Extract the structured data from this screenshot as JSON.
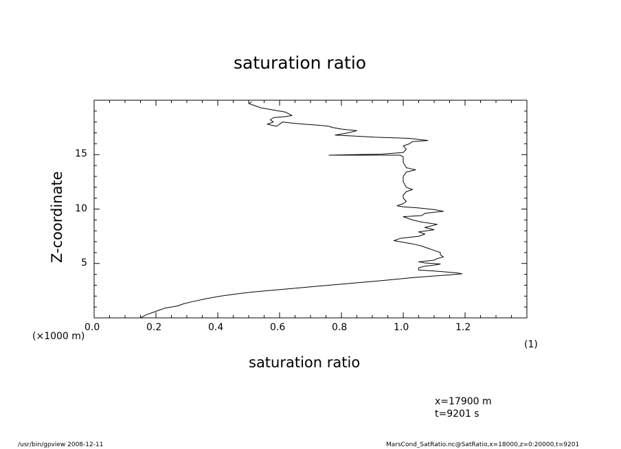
{
  "chart_data": {
    "type": "line",
    "title": "saturation ratio",
    "xlabel": "saturation ratio",
    "ylabel": "Z-coordinate",
    "xlim": [
      0.0,
      1.4
    ],
    "ylim": [
      0,
      20
    ],
    "x_ticks": [
      "0.0",
      "0.2",
      "0.4",
      "0.6",
      "0.8",
      "1.0",
      "1.2"
    ],
    "y_ticks": [
      "5",
      "10",
      "15"
    ],
    "x_units": "(1)",
    "y_units": "(×1000 m)",
    "grid": false,
    "series": [
      {
        "points": [
          [
            0.15,
            0.0
          ],
          [
            0.16,
            0.15
          ],
          [
            0.17,
            0.3
          ],
          [
            0.19,
            0.5
          ],
          [
            0.21,
            0.7
          ],
          [
            0.23,
            0.9
          ],
          [
            0.27,
            1.1
          ],
          [
            0.29,
            1.3
          ],
          [
            0.32,
            1.5
          ],
          [
            0.36,
            1.75
          ],
          [
            0.41,
            2.0
          ],
          [
            0.46,
            2.2
          ],
          [
            0.52,
            2.4
          ],
          [
            0.58,
            2.55
          ],
          [
            0.64,
            2.7
          ],
          [
            0.72,
            2.9
          ],
          [
            0.8,
            3.1
          ],
          [
            0.88,
            3.3
          ],
          [
            0.96,
            3.5
          ],
          [
            1.03,
            3.7
          ],
          [
            1.1,
            3.85
          ],
          [
            1.15,
            3.95
          ],
          [
            1.19,
            4.05
          ],
          [
            1.17,
            4.15
          ],
          [
            1.1,
            4.3
          ],
          [
            1.05,
            4.4
          ],
          [
            1.05,
            4.6
          ],
          [
            1.07,
            4.75
          ],
          [
            1.1,
            4.85
          ],
          [
            1.12,
            4.95
          ],
          [
            1.07,
            5.05
          ],
          [
            1.05,
            5.15
          ],
          [
            1.1,
            5.3
          ],
          [
            1.11,
            5.45
          ],
          [
            1.13,
            5.6
          ],
          [
            1.12,
            5.8
          ],
          [
            1.12,
            6.0
          ],
          [
            1.1,
            6.2
          ],
          [
            1.08,
            6.4
          ],
          [
            1.06,
            6.6
          ],
          [
            1.03,
            6.8
          ],
          [
            0.99,
            7.0
          ],
          [
            0.97,
            7.1
          ],
          [
            0.99,
            7.3
          ],
          [
            1.05,
            7.5
          ],
          [
            1.07,
            7.7
          ],
          [
            1.05,
            7.9
          ],
          [
            1.1,
            8.1
          ],
          [
            1.07,
            8.3
          ],
          [
            1.11,
            8.6
          ],
          [
            1.06,
            8.8
          ],
          [
            1.03,
            9.0
          ],
          [
            1.0,
            9.3
          ],
          [
            1.06,
            9.4
          ],
          [
            1.07,
            9.6
          ],
          [
            1.13,
            9.8
          ],
          [
            1.1,
            9.95
          ],
          [
            1.05,
            10.1
          ],
          [
            1.0,
            10.2
          ],
          [
            0.98,
            10.3
          ],
          [
            1.0,
            10.5
          ],
          [
            1.01,
            10.7
          ],
          [
            1.0,
            11.0
          ],
          [
            1.0,
            11.3
          ],
          [
            1.01,
            11.6
          ],
          [
            1.03,
            11.8
          ],
          [
            1.01,
            12.0
          ],
          [
            1.0,
            12.5
          ],
          [
            1.0,
            13.0
          ],
          [
            1.01,
            13.4
          ],
          [
            1.04,
            13.6
          ],
          [
            1.01,
            13.8
          ],
          [
            1.0,
            14.3
          ],
          [
            1.0,
            14.8
          ],
          [
            0.99,
            14.95
          ],
          [
            0.76,
            14.95
          ],
          [
            0.93,
            15.05
          ],
          [
            1.0,
            15.2
          ],
          [
            1.01,
            15.5
          ],
          [
            1.0,
            15.8
          ],
          [
            1.02,
            16.0
          ],
          [
            1.03,
            16.2
          ],
          [
            1.08,
            16.3
          ],
          [
            1.05,
            16.4
          ],
          [
            1.02,
            16.5
          ],
          [
            0.91,
            16.6
          ],
          [
            0.78,
            16.8
          ],
          [
            0.82,
            17.0
          ],
          [
            0.85,
            17.2
          ],
          [
            0.8,
            17.35
          ],
          [
            0.77,
            17.5
          ],
          [
            0.76,
            17.6
          ],
          [
            0.73,
            17.7
          ],
          [
            0.68,
            17.8
          ],
          [
            0.64,
            17.9
          ],
          [
            0.61,
            18.0
          ],
          [
            0.59,
            17.6
          ],
          [
            0.56,
            17.8
          ],
          [
            0.58,
            18.0
          ],
          [
            0.57,
            18.2
          ],
          [
            0.58,
            18.4
          ],
          [
            0.62,
            18.5
          ],
          [
            0.64,
            18.6
          ],
          [
            0.62,
            18.9
          ],
          [
            0.58,
            19.1
          ],
          [
            0.54,
            19.3
          ],
          [
            0.52,
            19.5
          ],
          [
            0.5,
            19.7
          ],
          [
            0.51,
            19.85
          ]
        ]
      }
    ]
  },
  "annotations": {
    "position_x": "x=17900  m",
    "time": "t=9201  s"
  },
  "footer": {
    "left": "/usr/bin/gpview   2008-12-11",
    "right": "MarsCond_SatRatio.nc@SatRatio,x=18000,z=0:20000,t=9201"
  }
}
